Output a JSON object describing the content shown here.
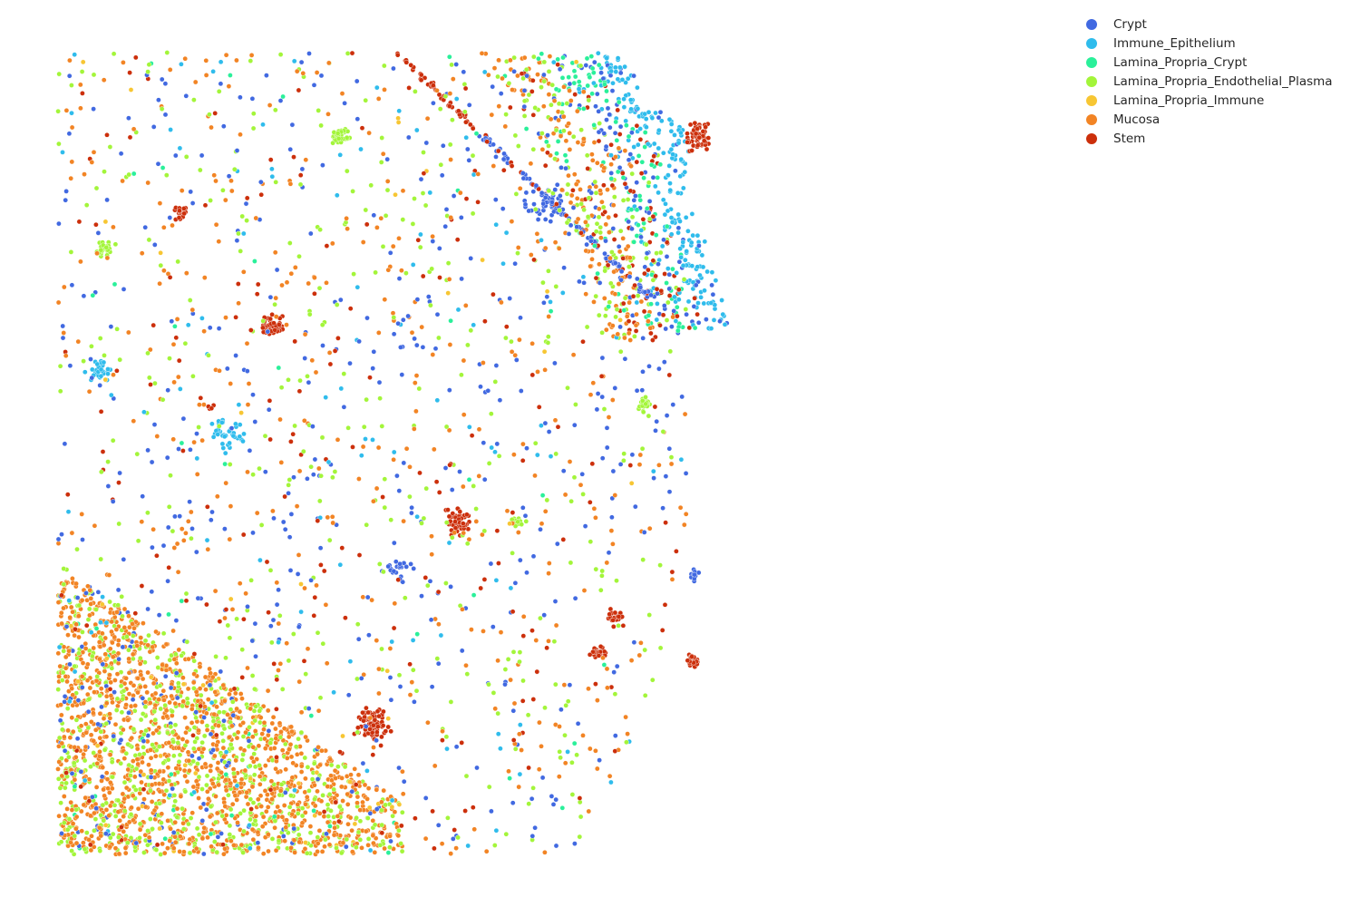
{
  "chart_data": {
    "type": "scatter",
    "title": "",
    "xlabel": "",
    "ylabel": "",
    "axes_visible": false,
    "grid": false,
    "legend_position": "top-right outside",
    "series": [
      {
        "name": "Crypt",
        "color": "#4169e1"
      },
      {
        "name": "Immune_Epithelium",
        "color": "#2fbcec"
      },
      {
        "name": "Lamina_Propria_Crypt",
        "color": "#2af09a"
      },
      {
        "name": "Lamina_Propria_Endothelial_Plasma",
        "color": "#a3f53a"
      },
      {
        "name": "Lamina_Propria_Immune",
        "color": "#f7c633"
      },
      {
        "name": "Mucosa",
        "color": "#f28424"
      },
      {
        "name": "Stem",
        "color": "#cc2f0b"
      }
    ],
    "regions": {
      "epithelial_arc": {
        "center": [
          -80,
          500
        ],
        "radius": 930,
        "extent": [
          0.08,
          0.95
        ],
        "dominant": [
          "Immune_Epithelium",
          "Crypt",
          "Lamina_Propria_Crypt",
          "Stem",
          "Mucosa",
          "Lamina_Propria_Endothelial_Plasma"
        ]
      },
      "mucosa_wedge": {
        "bottom_left": true,
        "dominant": [
          "Mucosa",
          "Lamina_Propria_Endothelial_Plasma"
        ]
      },
      "interior": {
        "scattered": true,
        "dominant": [
          "Crypt",
          "Stem",
          "Mucosa",
          "Lamina_Propria_Endothelial_Plasma"
        ]
      }
    }
  }
}
